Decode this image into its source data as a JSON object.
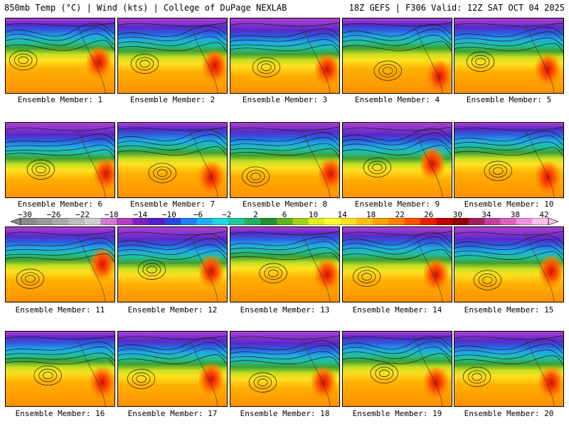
{
  "header": {
    "left": "850mb Temp (°C) | Wind (kts) | College of DuPage NEXLAB",
    "right": "18Z GEFS | F306 Valid: 12Z SAT OCT 04 2025"
  },
  "panels": [
    {
      "label": "Ensemble Member: 1"
    },
    {
      "label": "Ensemble Member: 2"
    },
    {
      "label": "Ensemble Member: 3"
    },
    {
      "label": "Ensemble Member: 4"
    },
    {
      "label": "Ensemble Member: 5"
    },
    {
      "label": "Ensemble Member: 6"
    },
    {
      "label": "Ensemble Member: 7"
    },
    {
      "label": "Ensemble Member: 8"
    },
    {
      "label": "Ensemble Member: 9"
    },
    {
      "label": "Ensemble Member: 10"
    },
    {
      "label": "Ensemble Member: 11"
    },
    {
      "label": "Ensemble Member: 12"
    },
    {
      "label": "Ensemble Member: 13"
    },
    {
      "label": "Ensemble Member: 14"
    },
    {
      "label": "Ensemble Member: 15"
    },
    {
      "label": "Ensemble Member: 16"
    },
    {
      "label": "Ensemble Member: 17"
    },
    {
      "label": "Ensemble Member: 18"
    },
    {
      "label": "Ensemble Member: 19"
    },
    {
      "label": "Ensemble Member: 20"
    }
  ],
  "colorbar": {
    "ticks": [
      "−30",
      "−26",
      "−22",
      "−18",
      "−14",
      "−10",
      "−6",
      "−2",
      "2",
      "6",
      "10",
      "14",
      "18",
      "22",
      "26",
      "30",
      "34",
      "38",
      "42"
    ],
    "colors": [
      "#8a8a8a",
      "#9a9a9a",
      "#aaaaaa",
      "#bdbdbd",
      "#d0d0d0",
      "#d07ad0",
      "#b040c0",
      "#8020c0",
      "#5020c8",
      "#2848e0",
      "#2080f0",
      "#20b0f0",
      "#20d8e0",
      "#20c8a0",
      "#20b060",
      "#209030",
      "#60b020",
      "#a0d020",
      "#e0f020",
      "#ffff30",
      "#ffe020",
      "#ffc010",
      "#ffa000",
      "#ff8000",
      "#ff5000",
      "#e82000",
      "#c00000",
      "#900000",
      "#a02060",
      "#c040a0",
      "#e060c0",
      "#f090e0",
      "#ffc0f0"
    ]
  }
}
